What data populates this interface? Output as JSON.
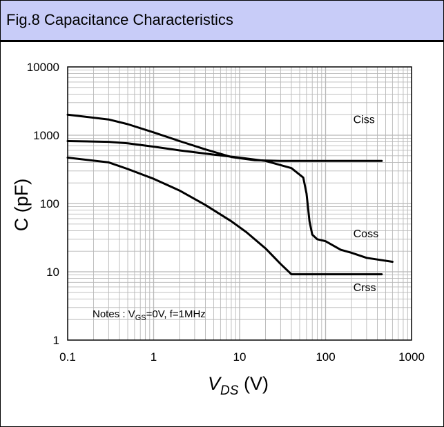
{
  "header": {
    "title": "Fig.8 Capacitance Characteristics"
  },
  "chart_data": {
    "type": "line",
    "xlabel": {
      "main": "V",
      "sub": "DS",
      "unit": " (V)"
    },
    "ylabel": "C (pF)",
    "x_scale": "log",
    "y_scale": "log",
    "xlim": [
      0.1,
      1000
    ],
    "ylim": [
      1,
      10000
    ],
    "grid": true,
    "x_ticks": [
      {
        "value": 0.1,
        "label": "0.1"
      },
      {
        "value": 1,
        "label": "1"
      },
      {
        "value": 10,
        "label": "10"
      },
      {
        "value": 100,
        "label": "100"
      },
      {
        "value": 1000,
        "label": "1000"
      }
    ],
    "y_ticks": [
      {
        "value": 1,
        "label": "1"
      },
      {
        "value": 10,
        "label": "10"
      },
      {
        "value": 100,
        "label": "100"
      },
      {
        "value": 1000,
        "label": "1000"
      },
      {
        "value": 10000,
        "label": "10000"
      }
    ],
    "series": [
      {
        "name": "Ciss",
        "label_pos": {
          "x": 210,
          "y": 1500
        },
        "points": [
          [
            0.1,
            2000
          ],
          [
            0.3,
            1700
          ],
          [
            0.5,
            1450
          ],
          [
            1,
            1100
          ],
          [
            2,
            820
          ],
          [
            4,
            620
          ],
          [
            8,
            480
          ],
          [
            15,
            430
          ],
          [
            30,
            420
          ],
          [
            100,
            420
          ],
          [
            300,
            420
          ],
          [
            450,
            420
          ]
        ]
      },
      {
        "name": "Coss",
        "label_pos": {
          "x": 210,
          "y": 32
        },
        "points": [
          [
            0.1,
            820
          ],
          [
            0.3,
            800
          ],
          [
            0.5,
            760
          ],
          [
            1,
            680
          ],
          [
            2,
            600
          ],
          [
            5,
            520
          ],
          [
            10,
            470
          ],
          [
            20,
            420
          ],
          [
            40,
            330
          ],
          [
            55,
            240
          ],
          [
            60,
            140
          ],
          [
            65,
            55
          ],
          [
            70,
            35
          ],
          [
            80,
            30
          ],
          [
            100,
            28
          ],
          [
            150,
            21
          ],
          [
            200,
            19
          ],
          [
            300,
            16
          ],
          [
            600,
            14
          ]
        ]
      },
      {
        "name": "Crss",
        "label_pos": {
          "x": 210,
          "y": 5.2
        },
        "points": [
          [
            0.1,
            470
          ],
          [
            0.3,
            400
          ],
          [
            0.5,
            320
          ],
          [
            1,
            230
          ],
          [
            2,
            155
          ],
          [
            4,
            95
          ],
          [
            8,
            55
          ],
          [
            12,
            38
          ],
          [
            20,
            22
          ],
          [
            30,
            13
          ],
          [
            40,
            9.2
          ],
          [
            60,
            9.2
          ],
          [
            100,
            9.2
          ],
          [
            200,
            9.2
          ],
          [
            450,
            9.2
          ]
        ]
      }
    ],
    "annotation": {
      "prefix": "Notes : V",
      "sub": "GS",
      "suffix": "=0V,  f=1MHz"
    }
  }
}
